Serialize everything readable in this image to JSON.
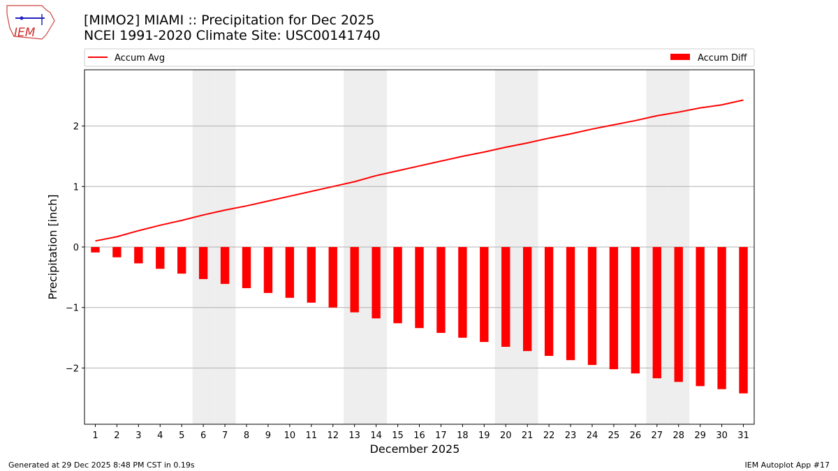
{
  "chart_data": {
    "type": "bar",
    "title": "[MIMO2] MIAMI :: Precipitation for Dec 2025",
    "subtitle": "NCEI 1991-2020 Climate Site: USC00141740",
    "xlabel": "December 2025",
    "ylabel": "Precipitation [inch]",
    "x": [
      1,
      2,
      3,
      4,
      5,
      6,
      7,
      8,
      9,
      10,
      11,
      12,
      13,
      14,
      15,
      16,
      17,
      18,
      19,
      20,
      21,
      22,
      23,
      24,
      25,
      26,
      27,
      28,
      29,
      30,
      31
    ],
    "xlim": [
      0.5,
      31.5
    ],
    "ylim": [
      -2.93,
      2.93
    ],
    "yticks": [
      -2,
      -1,
      0,
      1,
      2
    ],
    "grid": "horizontal",
    "legend": "top, above plot",
    "weekend_shading_days": [
      6,
      7,
      13,
      14,
      20,
      21,
      27,
      28
    ],
    "series": [
      {
        "name": "Accum Avg",
        "type": "line",
        "color": "#ff0000",
        "values": [
          0.1,
          0.17,
          0.27,
          0.36,
          0.44,
          0.53,
          0.61,
          0.68,
          0.76,
          0.84,
          0.92,
          1.0,
          1.08,
          1.18,
          1.26,
          1.34,
          1.42,
          1.5,
          1.57,
          1.65,
          1.72,
          1.8,
          1.87,
          1.95,
          2.02,
          2.09,
          2.17,
          2.23,
          2.3,
          2.35,
          2.43
        ]
      },
      {
        "name": "Accum Diff",
        "type": "bar",
        "color": "#ff0000",
        "values": [
          -0.09,
          -0.17,
          -0.27,
          -0.36,
          -0.44,
          -0.53,
          -0.61,
          -0.68,
          -0.76,
          -0.84,
          -0.92,
          -1.0,
          -1.08,
          -1.18,
          -1.26,
          -1.34,
          -1.42,
          -1.5,
          -1.57,
          -1.65,
          -1.72,
          -1.8,
          -1.87,
          -1.95,
          -2.02,
          -2.09,
          -2.17,
          -2.23,
          -2.3,
          -2.35,
          -2.42
        ]
      }
    ]
  },
  "footer": {
    "left": "Generated at 29 Dec 2025 8:48 PM CST in 0.19s",
    "right": "IEM Autoplot App #17"
  },
  "logo": {
    "text": "IEM"
  }
}
